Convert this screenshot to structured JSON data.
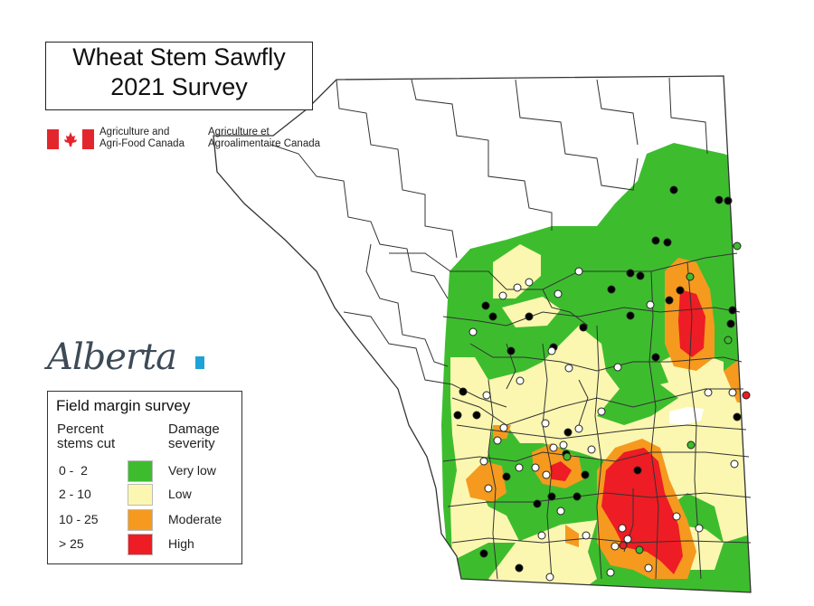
{
  "title": {
    "line1": "Wheat Stem Sawfly",
    "line2": "2021 Survey"
  },
  "agency": {
    "en_line1": "Agriculture and",
    "en_line2": "Agri-Food Canada",
    "fr_line1": "Agriculture et",
    "fr_line2": "Agroalimentaire Canada"
  },
  "alberta_logo": "Alberta",
  "legend": {
    "title": "Field margin survey",
    "col1_line1": "Percent",
    "col1_line2": "stems cut",
    "col2_line1": "Damage",
    "col2_line2": "severity",
    "items": [
      {
        "range": "0 -  2",
        "label": "Very low",
        "color": "#3dbd2e"
      },
      {
        "range": "2 - 10",
        "label": "Low",
        "color": "#fbf7b0"
      },
      {
        "range": "10 - 25",
        "label": "Moderate",
        "color": "#f59a1e"
      },
      {
        "range": "> 25",
        "label": "High",
        "color": "#ee1c24"
      }
    ]
  },
  "symbols": {
    "sawfly_present_color": "#000000",
    "sawfly_absent_color": "#ffffff"
  }
}
